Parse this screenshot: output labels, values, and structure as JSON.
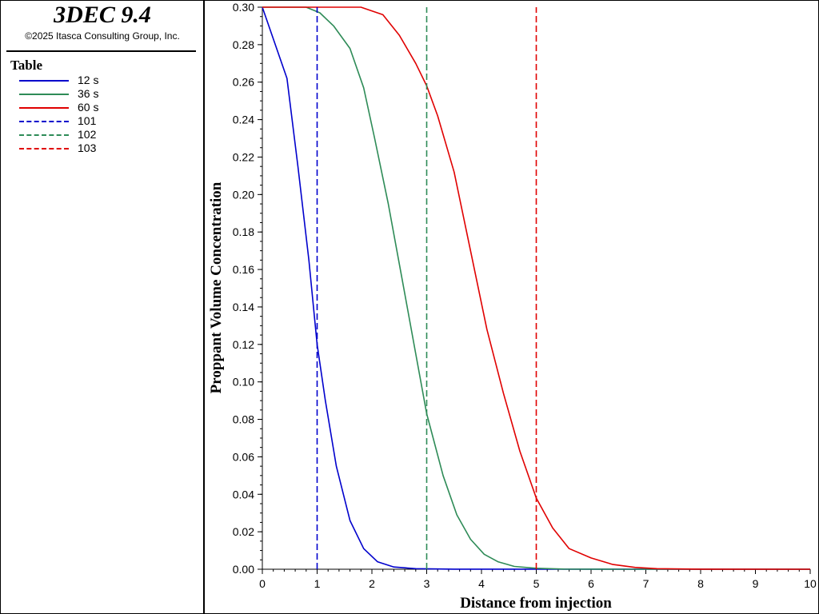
{
  "app": {
    "title": "3DEC 9.4",
    "copyright": "©2025 Itasca Consulting Group, Inc."
  },
  "legend": {
    "title": "Table",
    "items": [
      {
        "label": "12 s",
        "color": "#0000cc",
        "style": "solid"
      },
      {
        "label": "36 s",
        "color": "#2e8b57",
        "style": "solid"
      },
      {
        "label": "60 s",
        "color": "#e00000",
        "style": "solid"
      },
      {
        "label": "101",
        "color": "#0000cc",
        "style": "dashed"
      },
      {
        "label": "102",
        "color": "#2e8b57",
        "style": "dashed"
      },
      {
        "label": "103",
        "color": "#e00000",
        "style": "dashed"
      }
    ]
  },
  "chart_data": {
    "type": "line",
    "xlabel": "Distance from injection",
    "ylabel": "Proppant Volume Concentration",
    "xlim": [
      0,
      10
    ],
    "ylim": [
      0,
      0.3
    ],
    "xticks": [
      "0",
      "1",
      "2",
      "3",
      "4",
      "5",
      "6",
      "7",
      "8",
      "9",
      "10"
    ],
    "yticks": [
      "0.00",
      "0.02",
      "0.04",
      "0.06",
      "0.08",
      "0.10",
      "0.12",
      "0.14",
      "0.16",
      "0.18",
      "0.20",
      "0.22",
      "0.24",
      "0.26",
      "0.28",
      "0.30"
    ],
    "grid": false,
    "series": [
      {
        "name": "12 s",
        "color": "#0000cc",
        "style": "solid",
        "x": [
          0,
          0.45,
          0.65,
          0.85,
          1.0,
          1.15,
          1.35,
          1.6,
          1.85,
          2.1,
          2.4,
          2.8,
          3.5,
          10
        ],
        "y": [
          0.3,
          0.262,
          0.215,
          0.165,
          0.12,
          0.09,
          0.055,
          0.026,
          0.011,
          0.004,
          0.0012,
          0.0003,
          5e-05,
          0.0
        ]
      },
      {
        "name": "36 s",
        "color": "#2e8b57",
        "style": "solid",
        "x": [
          0,
          0.8,
          1.05,
          1.3,
          1.6,
          1.85,
          2.05,
          2.3,
          2.55,
          2.8,
          3.0,
          3.3,
          3.55,
          3.8,
          4.05,
          4.3,
          4.6,
          5.0,
          5.5,
          6.5,
          10
        ],
        "y": [
          0.3,
          0.3,
          0.297,
          0.29,
          0.278,
          0.257,
          0.23,
          0.195,
          0.155,
          0.115,
          0.083,
          0.05,
          0.029,
          0.016,
          0.008,
          0.004,
          0.0015,
          0.0005,
          0.0001,
          0.0,
          0.0
        ]
      },
      {
        "name": "60 s",
        "color": "#e00000",
        "style": "solid",
        "x": [
          0,
          1.8,
          2.2,
          2.5,
          2.8,
          3.0,
          3.2,
          3.5,
          3.8,
          4.1,
          4.4,
          4.7,
          5.0,
          5.3,
          5.6,
          6.0,
          6.4,
          6.8,
          7.2,
          8.0,
          10
        ],
        "y": [
          0.3,
          0.3,
          0.296,
          0.285,
          0.27,
          0.258,
          0.242,
          0.212,
          0.17,
          0.128,
          0.094,
          0.063,
          0.038,
          0.022,
          0.011,
          0.006,
          0.0025,
          0.001,
          0.0003,
          5e-05,
          0.0
        ]
      },
      {
        "name": "101",
        "color": "#0000cc",
        "style": "dashed",
        "x": [
          1,
          1
        ],
        "y": [
          0,
          0.3
        ]
      },
      {
        "name": "102",
        "color": "#2e8b57",
        "style": "dashed",
        "x": [
          3,
          3
        ],
        "y": [
          0,
          0.3
        ]
      },
      {
        "name": "103",
        "color": "#e00000",
        "style": "dashed",
        "x": [
          5,
          5
        ],
        "y": [
          0,
          0.3
        ]
      }
    ]
  }
}
